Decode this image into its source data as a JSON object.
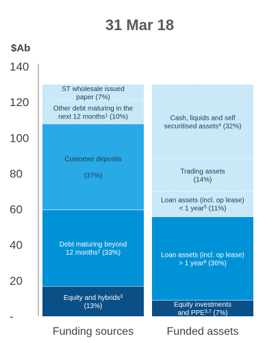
{
  "chart_data": {
    "type": "bar",
    "stacked": true,
    "title": "31 Mar 18",
    "ylabel": "$Ab",
    "ylim": [
      0,
      140
    ],
    "yticks": [
      "-",
      "20",
      "40",
      "60",
      "80",
      "100",
      "120",
      "140"
    ],
    "categories": [
      "Funding sources",
      "Funded assets"
    ],
    "bars": [
      {
        "category": "Funding sources",
        "segments": [
          {
            "lines": [
              "Equity and hybrids{3}",
              "(13%)"
            ],
            "value": 16.9,
            "color": "#0b4f87",
            "text_color": "#ffffff"
          },
          {
            "lines": [
              "Debt maturing beyond",
              "12 months{2} (33%)"
            ],
            "value": 42.9,
            "color": "#0092d7",
            "text_color": "#ffffff"
          },
          {
            "lines": [
              "Customer deposits",
              "",
              "(37%)"
            ],
            "value": 48.1,
            "color": "#29a9e6",
            "text_color": "#1f3a4d"
          },
          {
            "lines": [
              "Other debt maturing in the",
              "next 12 months{1} (10%)"
            ],
            "value": 13.0,
            "color": "#c9e8f8",
            "text_color": "#1f3a4d"
          },
          {
            "lines": [
              "ST wholesale issued",
              "paper (7%)"
            ],
            "value": 9.1,
            "color": "#c9e8f8",
            "text_color": "#1f3a4d"
          }
        ]
      },
      {
        "category": "Funded assets",
        "segments": [
          {
            "lines": [
              "Equity investments",
              "and PPE{3,7} (7%)"
            ],
            "value": 9.1,
            "color": "#0b4f87",
            "text_color": "#ffffff"
          },
          {
            "lines": [
              "Loan assets (incl. op lease)",
              "> 1 year{6} (36%)"
            ],
            "value": 46.8,
            "color": "#0092d7",
            "text_color": "#ffffff"
          },
          {
            "lines": [
              "Loan assets (incl. op lease)",
              "< 1 year{5} (11%)"
            ],
            "value": 14.3,
            "color": "#c9e8f8",
            "text_color": "#1f3a4d"
          },
          {
            "lines": [
              "Trading assets",
              "(14%)"
            ],
            "value": 18.2,
            "color": "#c9e8f8",
            "text_color": "#1f3a4d"
          },
          {
            "lines": [
              "Cash, liquids and self",
              "securitised assets{4} (32%)"
            ],
            "value": 41.6,
            "color": "#c9e8f8",
            "text_color": "#1f3a4d"
          }
        ]
      }
    ]
  }
}
